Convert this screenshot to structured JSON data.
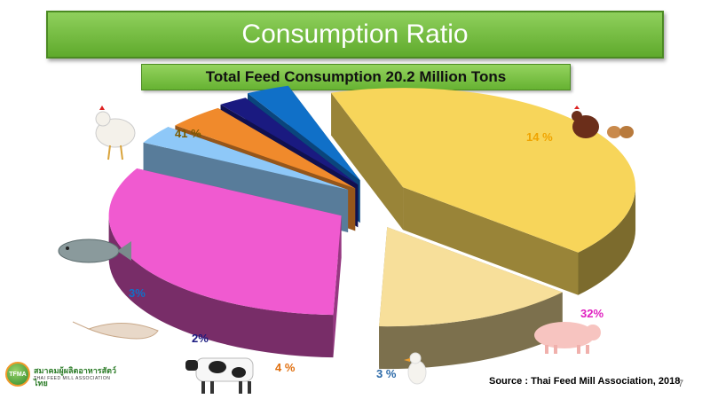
{
  "header": {
    "title": "Consumption Ratio",
    "subtitle": "Total Feed Consumption 20.2 Million Tons"
  },
  "chart_data": {
    "type": "pie",
    "title": "Consumption Ratio",
    "subtitle": "Total Feed Consumption 20.2 Million Tons",
    "slices": [
      {
        "key": "chicken-broiler",
        "label": "41 %",
        "value": 41,
        "color": "#f7d55a",
        "label_color": "#7a5a00",
        "icon": "chicken-icon"
      },
      {
        "key": "layer",
        "label": "14 %",
        "value": 14,
        "color": "#f7df9a",
        "label_color": "#f0a400",
        "icon": "hen-eggs-icon"
      },
      {
        "key": "swine",
        "label": "32%",
        "value": 32,
        "color": "#f05ad0",
        "label_color": "#e020c0",
        "icon": "pig-icon"
      },
      {
        "key": "duck",
        "label": "3 %",
        "value": 3,
        "color": "#8ec8f8",
        "label_color": "#2c6aa8",
        "icon": "duck-icon"
      },
      {
        "key": "cattle",
        "label": "4 %",
        "value": 4,
        "color": "#f08a2c",
        "label_color": "#e07010",
        "icon": "cow-icon"
      },
      {
        "key": "shrimp",
        "label": "2%",
        "value": 2,
        "color": "#1a1a80",
        "label_color": "#1a1a80",
        "icon": "shrimp-icon"
      },
      {
        "key": "fish",
        "label": "3%",
        "value": 3,
        "color": "#1070c8",
        "label_color": "#1070c8",
        "icon": "fish-icon"
      }
    ]
  },
  "footer": {
    "source": "Source : Thai Feed Mill Association, 2018",
    "page_number": "7",
    "logo_abbr": "TFMA",
    "logo_thai": "สมาคมผู้ผลิตอาหารสัตว์ไทย",
    "logo_english": "THAI FEED MILL ASSOCIATION"
  }
}
